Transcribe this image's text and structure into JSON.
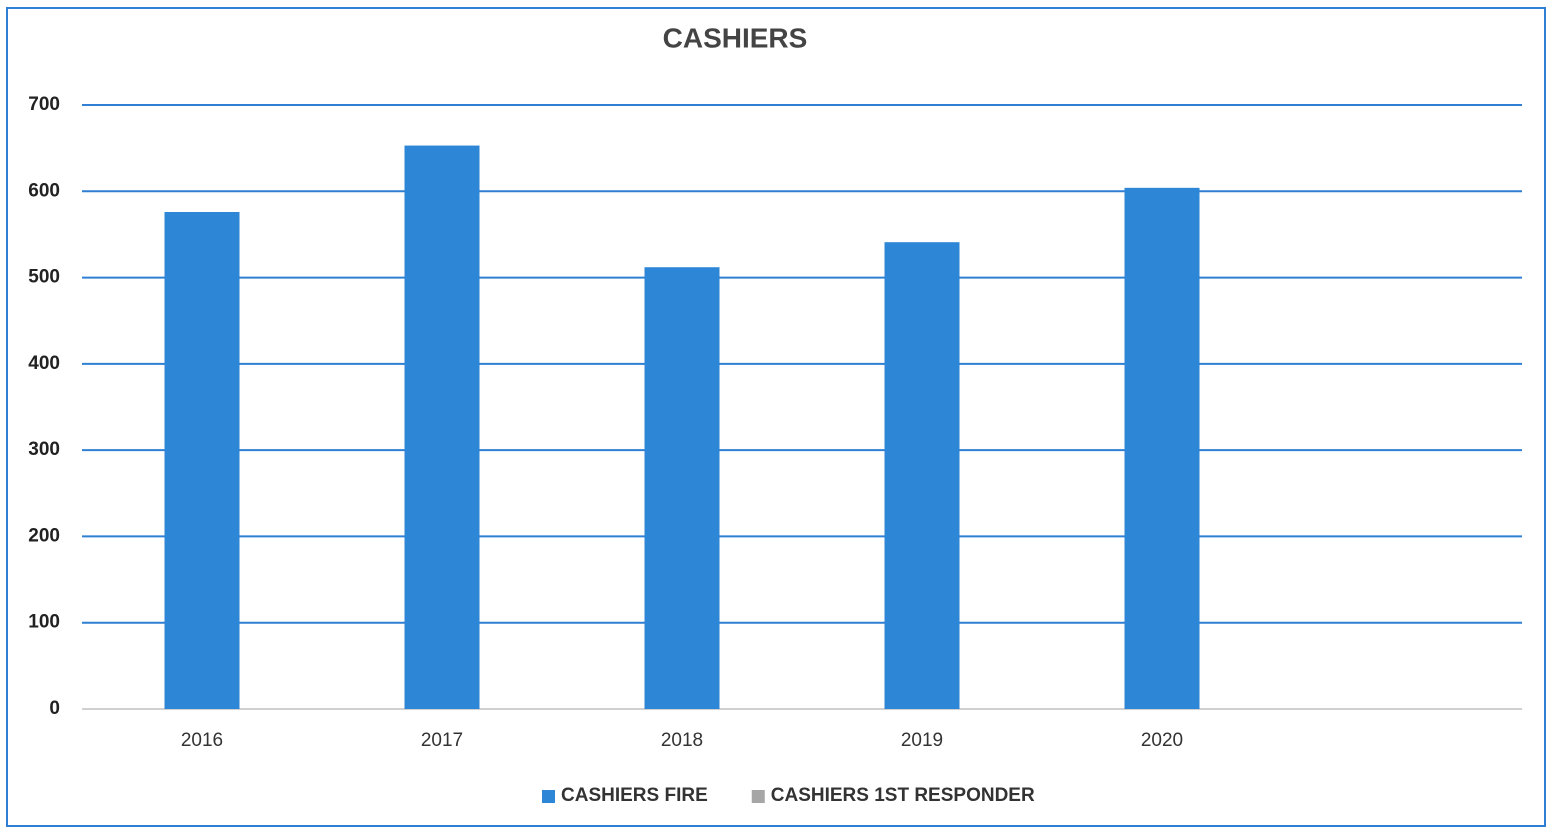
{
  "chart_data": {
    "type": "bar",
    "title": "CASHIERS",
    "categories": [
      "2016",
      "2017",
      "2018",
      "2019",
      "2020",
      null
    ],
    "series": [
      {
        "name": "CASHIERS FIRE",
        "color": "#2e86d6",
        "values": [
          576,
          653,
          512,
          541,
          604,
          null
        ]
      },
      {
        "name": "CASHIERS 1ST RESPONDER",
        "color": "#a6a6a6",
        "values": [
          null,
          null,
          null,
          null,
          null,
          null
        ]
      }
    ],
    "ylim": [
      0,
      700
    ],
    "yticks": [
      0,
      100,
      200,
      300,
      400,
      500,
      600,
      700
    ],
    "grid": true,
    "grid_color": "#2f7fd4",
    "legend": "bottom"
  }
}
